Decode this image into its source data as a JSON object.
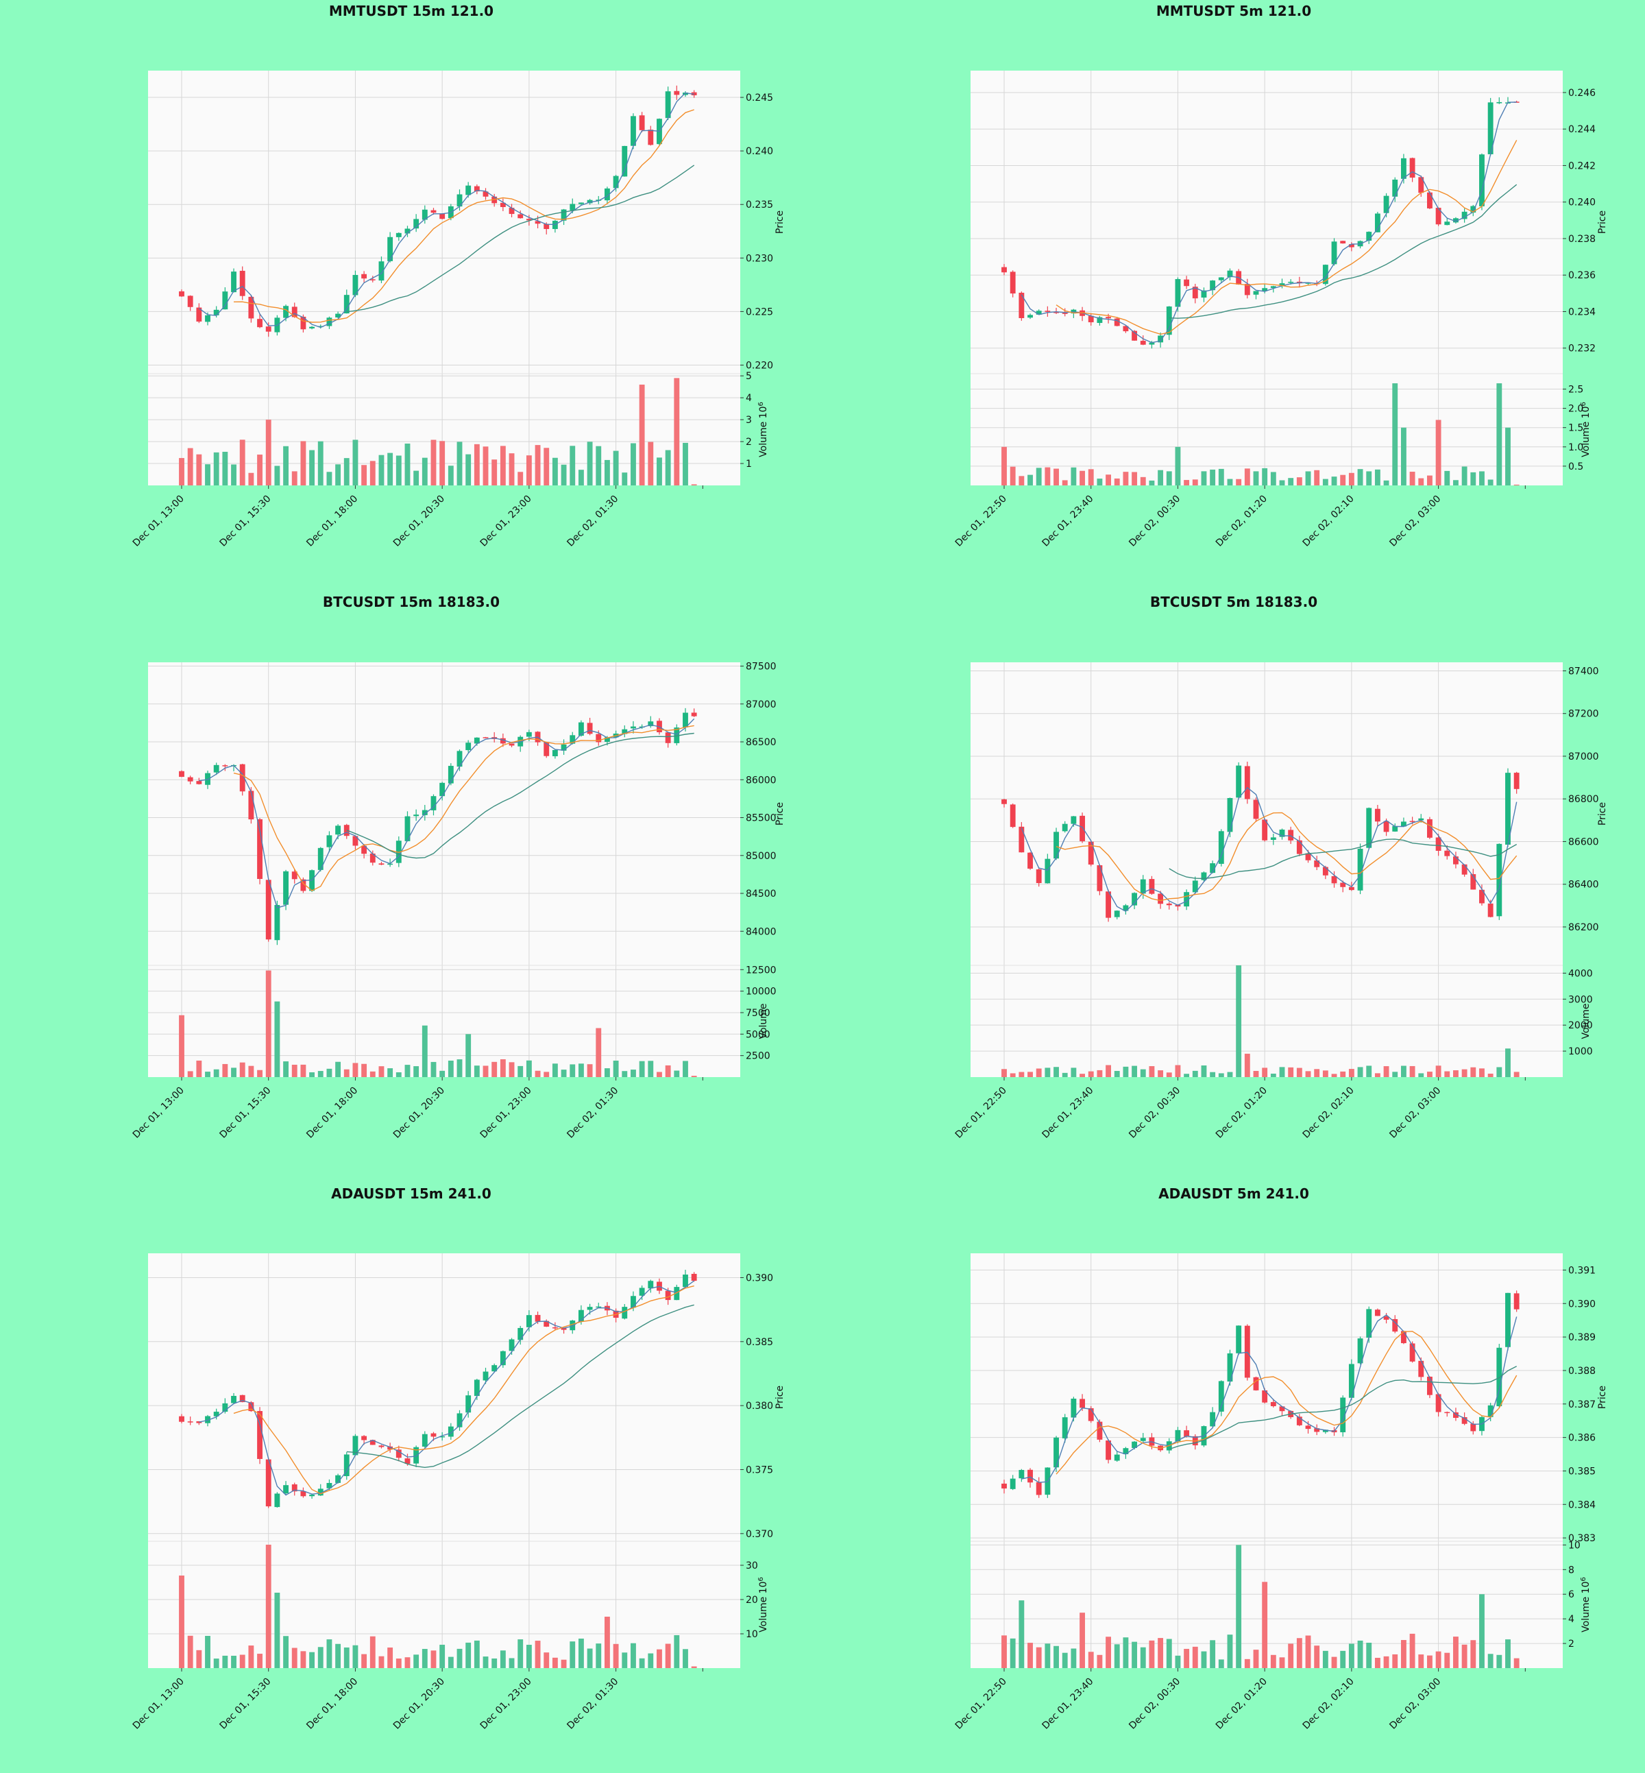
{
  "colors": {
    "background": "#8cfcc0",
    "panel": "#fafafa",
    "grid": "#d6d6d6",
    "up": "#1db682",
    "down": "#f0414f",
    "volume_up": "#4fc296",
    "volume_down": "#f37378",
    "ma_short": "#4f7fb4",
    "ma_mid": "#f28e2c",
    "ma_long": "#3d8f80"
  },
  "chart_data": [
    {
      "type": "candlestick",
      "title": "MMTUSDT 15m 121.0",
      "ylabel": "Price",
      "volume_label": "Volume  10",
      "volume_exponent": "6",
      "xticks": [
        "Dec 01, 13:00",
        "Dec 01, 15:30",
        "Dec 01, 18:00",
        "Dec 01, 20:30",
        "Dec 01, 23:00",
        "Dec 02, 01:30"
      ],
      "xtick_indices": [
        0,
        10,
        20,
        30,
        40,
        50
      ],
      "price_ylim": [
        0.2192,
        0.2475
      ],
      "price_ticks": [
        0.22,
        0.225,
        0.23,
        0.235,
        0.24,
        0.245
      ],
      "price_tick_labels": [
        "0.220",
        "0.225",
        "0.230",
        "0.235",
        "0.240",
        "0.245"
      ],
      "volume_ylim": [
        0,
        5.1
      ],
      "volume_ticks": [
        1,
        2,
        3,
        4,
        5
      ],
      "volume_tick_labels": [
        "1",
        "2",
        "3",
        "4",
        "5"
      ],
      "anchors": [
        [
          0,
          0.2265
        ],
        [
          2,
          0.2242
        ],
        [
          4,
          0.2252
        ],
        [
          6,
          0.2288
        ],
        [
          8,
          0.2242
        ],
        [
          10,
          0.2232
        ],
        [
          12,
          0.2255
        ],
        [
          14,
          0.2235
        ],
        [
          16,
          0.2238
        ],
        [
          18,
          0.2249
        ],
        [
          20,
          0.2285
        ],
        [
          22,
          0.2278
        ],
        [
          24,
          0.2318
        ],
        [
          26,
          0.2328
        ],
        [
          28,
          0.2345
        ],
        [
          30,
          0.2338
        ],
        [
          33,
          0.2368
        ],
        [
          36,
          0.2352
        ],
        [
          39,
          0.2337
        ],
        [
          42,
          0.2328
        ],
        [
          45,
          0.2352
        ],
        [
          48,
          0.2355
        ],
        [
          50,
          0.2375
        ],
        [
          52,
          0.2432
        ],
        [
          54,
          0.2405
        ],
        [
          56,
          0.2455
        ],
        [
          59,
          0.2452
        ]
      ],
      "n": 60,
      "seed": 11,
      "volume_base": 1.5,
      "volume_spikes": [
        [
          10,
          3.0
        ],
        [
          53,
          4.6
        ],
        [
          57,
          4.9
        ]
      ],
      "last_volume": 0.05,
      "ma_windows": [
        3,
        7,
        20
      ]
    },
    {
      "type": "candlestick",
      "title": "MMTUSDT 5m 121.0",
      "ylabel": "Price",
      "volume_label": "Volume  10",
      "volume_exponent": "6",
      "xticks": [
        "Dec 01, 22:50",
        "Dec 01, 23:40",
        "Dec 02, 00:30",
        "Dec 02, 01:20",
        "Dec 02, 02:10",
        "Dec 02, 03:00"
      ],
      "xtick_indices": [
        0,
        10,
        20,
        30,
        40,
        50
      ],
      "price_ylim": [
        0.2306,
        0.2472
      ],
      "price_ticks": [
        0.232,
        0.234,
        0.236,
        0.238,
        0.24,
        0.242,
        0.244,
        0.246
      ],
      "price_tick_labels": [
        "0.232",
        "0.234",
        "0.236",
        "0.238",
        "0.240",
        "0.242",
        "0.244",
        "0.246"
      ],
      "volume_ylim": [
        0,
        2.9
      ],
      "volume_ticks": [
        0.5,
        1.0,
        1.5,
        2.0,
        2.5
      ],
      "volume_tick_labels": [
        "0.5",
        "1.0",
        "1.5",
        "2.0",
        "2.5"
      ],
      "anchors": [
        [
          0,
          0.2362
        ],
        [
          2,
          0.2337
        ],
        [
          4,
          0.2341
        ],
        [
          6,
          0.2339
        ],
        [
          8,
          0.2341
        ],
        [
          10,
          0.2335
        ],
        [
          12,
          0.2337
        ],
        [
          14,
          0.2329
        ],
        [
          16,
          0.2321
        ],
        [
          18,
          0.2327
        ],
        [
          20,
          0.2358
        ],
        [
          22,
          0.2348
        ],
        [
          24,
          0.2357
        ],
        [
          26,
          0.2362
        ],
        [
          28,
          0.2349
        ],
        [
          30,
          0.2353
        ],
        [
          33,
          0.2356
        ],
        [
          36,
          0.2355
        ],
        [
          38,
          0.2378
        ],
        [
          40,
          0.2375
        ],
        [
          42,
          0.2383
        ],
        [
          44,
          0.2403
        ],
        [
          46,
          0.2423
        ],
        [
          48,
          0.2405
        ],
        [
          50,
          0.2388
        ],
        [
          52,
          0.2392
        ],
        [
          54,
          0.2398
        ],
        [
          56,
          0.2455
        ],
        [
          59,
          0.2455
        ]
      ],
      "n": 60,
      "seed": 23,
      "volume_base": 0.35,
      "volume_spikes": [
        [
          0,
          1.0
        ],
        [
          20,
          1.0
        ],
        [
          45,
          2.65
        ],
        [
          46,
          1.5
        ],
        [
          50,
          1.7
        ],
        [
          57,
          2.65
        ],
        [
          58,
          1.5
        ]
      ],
      "last_volume": 0.02,
      "ma_windows": [
        3,
        7,
        20
      ]
    },
    {
      "type": "candlestick",
      "title": "BTCUSDT 15m 18183.0",
      "ylabel": "Price",
      "volume_label": "Volume",
      "volume_exponent": "",
      "xticks": [
        "Dec 01, 13:00",
        "Dec 01, 15:30",
        "Dec 01, 18:00",
        "Dec 01, 20:30",
        "Dec 01, 23:00",
        "Dec 02, 01:30"
      ],
      "xtick_indices": [
        0,
        10,
        20,
        30,
        40,
        50
      ],
      "price_ylim": [
        83550,
        87550
      ],
      "price_ticks": [
        84000,
        84500,
        85000,
        85500,
        86000,
        86500,
        87000,
        87500
      ],
      "price_tick_labels": [
        "84000",
        "84500",
        "85000",
        "85500",
        "86000",
        "86500",
        "87000",
        "87500"
      ],
      "volume_ylim": [
        0,
        13000
      ],
      "volume_ticks": [
        2500,
        5000,
        7500,
        10000,
        12500
      ],
      "volume_tick_labels": [
        "2500",
        "5000",
        "7500",
        "10000",
        "12500"
      ],
      "anchors": [
        [
          0,
          86050
        ],
        [
          2,
          85950
        ],
        [
          4,
          86200
        ],
        [
          6,
          86200
        ],
        [
          8,
          85500
        ],
        [
          10,
          83900
        ],
        [
          12,
          84800
        ],
        [
          14,
          84550
        ],
        [
          16,
          85100
        ],
        [
          18,
          85400
        ],
        [
          20,
          85150
        ],
        [
          22,
          84900
        ],
        [
          24,
          84900
        ],
        [
          26,
          85500
        ],
        [
          28,
          85600
        ],
        [
          30,
          85950
        ],
        [
          32,
          86400
        ],
        [
          34,
          86550
        ],
        [
          36,
          86550
        ],
        [
          38,
          86450
        ],
        [
          40,
          86650
        ],
        [
          42,
          86300
        ],
        [
          44,
          86450
        ],
        [
          46,
          86750
        ],
        [
          48,
          86500
        ],
        [
          50,
          86600
        ],
        [
          52,
          86700
        ],
        [
          54,
          86750
        ],
        [
          56,
          86500
        ],
        [
          58,
          86900
        ],
        [
          59,
          86850
        ]
      ],
      "n": 60,
      "seed": 37,
      "volume_base": 1500,
      "volume_spikes": [
        [
          0,
          7200
        ],
        [
          10,
          12400
        ],
        [
          11,
          8800
        ],
        [
          28,
          6000
        ],
        [
          33,
          5000
        ],
        [
          48,
          5700
        ]
      ],
      "last_volume": 150,
      "ma_windows": [
        3,
        7,
        20
      ]
    },
    {
      "type": "candlestick",
      "title": "BTCUSDT 5m 18183.0",
      "ylabel": "Price",
      "volume_label": "Volume",
      "volume_exponent": "",
      "xticks": [
        "Dec 01, 22:50",
        "Dec 01, 23:40",
        "Dec 02, 00:30",
        "Dec 02, 01:20",
        "Dec 02, 02:10",
        "Dec 02, 03:00"
      ],
      "xtick_indices": [
        0,
        10,
        20,
        30,
        40,
        50
      ],
      "price_ylim": [
        86020,
        87440
      ],
      "price_ticks": [
        86200,
        86400,
        86600,
        86800,
        87000,
        87200,
        87400
      ],
      "price_tick_labels": [
        "86200",
        "86400",
        "86600",
        "86800",
        "87000",
        "87200",
        "87400"
      ],
      "volume_ylim": [
        0,
        4300
      ],
      "volume_ticks": [
        1000,
        2000,
        3000,
        4000
      ],
      "volume_tick_labels": [
        "1000",
        "2000",
        "3000",
        "4000"
      ],
      "anchors": [
        [
          0,
          86780
        ],
        [
          2,
          86550
        ],
        [
          4,
          86400
        ],
        [
          6,
          86650
        ],
        [
          8,
          86720
        ],
        [
          10,
          86500
        ],
        [
          12,
          86250
        ],
        [
          14,
          86300
        ],
        [
          16,
          86420
        ],
        [
          18,
          86300
        ],
        [
          20,
          86300
        ],
        [
          22,
          86420
        ],
        [
          24,
          86500
        ],
        [
          27,
          86950
        ],
        [
          28,
          86800
        ],
        [
          30,
          86600
        ],
        [
          32,
          86650
        ],
        [
          34,
          86550
        ],
        [
          36,
          86480
        ],
        [
          38,
          86400
        ],
        [
          40,
          86380
        ],
        [
          42,
          86750
        ],
        [
          44,
          86650
        ],
        [
          46,
          86700
        ],
        [
          48,
          86700
        ],
        [
          50,
          86550
        ],
        [
          52,
          86500
        ],
        [
          54,
          86380
        ],
        [
          56,
          86250
        ],
        [
          58,
          86920
        ],
        [
          59,
          86840
        ]
      ],
      "n": 60,
      "seed": 53,
      "volume_base": 330,
      "volume_spikes": [
        [
          27,
          4300
        ],
        [
          28,
          900
        ],
        [
          58,
          1100
        ]
      ],
      "last_volume": 200,
      "ma_windows": [
        3,
        7,
        20
      ]
    },
    {
      "type": "candlestick",
      "title": "ADAUSDT 15m 241.0",
      "ylabel": "Price",
      "volume_label": "Volume  10",
      "volume_exponent": "6",
      "xticks": [
        "Dec 01, 13:00",
        "Dec 01, 15:30",
        "Dec 01, 18:00",
        "Dec 01, 20:30",
        "Dec 01, 23:00",
        "Dec 02, 01:30"
      ],
      "xtick_indices": [
        0,
        10,
        20,
        30,
        40,
        50
      ],
      "price_ylim": [
        0.3694,
        0.3919
      ],
      "price_ticks": [
        0.37,
        0.375,
        0.38,
        0.385,
        0.39
      ],
      "price_tick_labels": [
        "0.370",
        "0.375",
        "0.380",
        "0.385",
        "0.390"
      ],
      "volume_ylim": [
        0,
        37
      ],
      "volume_ticks": [
        10,
        20,
        30
      ],
      "volume_tick_labels": [
        "10",
        "20",
        "30"
      ],
      "anchors": [
        [
          0,
          0.3788
        ],
        [
          2,
          0.3786
        ],
        [
          4,
          0.3795
        ],
        [
          6,
          0.3808
        ],
        [
          8,
          0.3795
        ],
        [
          10,
          0.3722
        ],
        [
          12,
          0.3738
        ],
        [
          14,
          0.3728
        ],
        [
          16,
          0.3735
        ],
        [
          18,
          0.3746
        ],
        [
          20,
          0.3775
        ],
        [
          22,
          0.377
        ],
        [
          24,
          0.3765
        ],
        [
          26,
          0.3755
        ],
        [
          28,
          0.3778
        ],
        [
          30,
          0.3775
        ],
        [
          32,
          0.3795
        ],
        [
          34,
          0.382
        ],
        [
          36,
          0.3832
        ],
        [
          38,
          0.3852
        ],
        [
          40,
          0.387
        ],
        [
          42,
          0.3862
        ],
        [
          44,
          0.3858
        ],
        [
          46,
          0.3875
        ],
        [
          48,
          0.3878
        ],
        [
          50,
          0.387
        ],
        [
          52,
          0.3885
        ],
        [
          54,
          0.3898
        ],
        [
          56,
          0.3882
        ],
        [
          58,
          0.3902
        ],
        [
          59,
          0.3898
        ]
      ],
      "n": 60,
      "seed": 71,
      "volume_base": 7,
      "volume_spikes": [
        [
          0,
          27
        ],
        [
          10,
          36
        ],
        [
          11,
          22
        ],
        [
          49,
          15
        ]
      ],
      "last_volume": 0.5,
      "ma_windows": [
        3,
        7,
        20
      ]
    },
    {
      "type": "candlestick",
      "title": "ADAUSDT 5m 241.0",
      "ylabel": "Price",
      "volume_label": "Volume  10",
      "volume_exponent": "6",
      "xticks": [
        "Dec 01, 22:50",
        "Dec 01, 23:40",
        "Dec 02, 00:30",
        "Dec 02, 01:20",
        "Dec 02, 02:10",
        "Dec 02, 03:00"
      ],
      "xtick_indices": [
        0,
        10,
        20,
        30,
        40,
        50
      ],
      "price_ylim": [
        0.3829,
        0.3915
      ],
      "price_ticks": [
        0.383,
        0.384,
        0.385,
        0.386,
        0.387,
        0.388,
        0.389,
        0.39,
        0.391
      ],
      "price_tick_labels": [
        "0.383",
        "0.384",
        "0.385",
        "0.386",
        "0.387",
        "0.388",
        "0.389",
        "0.390",
        "0.391"
      ],
      "volume_ylim": [
        0,
        10.3
      ],
      "volume_ticks": [
        2,
        4,
        6,
        8,
        10
      ],
      "volume_tick_labels": [
        "2",
        "4",
        "6",
        "8",
        "10"
      ],
      "anchors": [
        [
          0,
          0.3845
        ],
        [
          2,
          0.385
        ],
        [
          4,
          0.3843
        ],
        [
          6,
          0.386
        ],
        [
          8,
          0.3872
        ],
        [
          10,
          0.3865
        ],
        [
          12,
          0.3853
        ],
        [
          14,
          0.3857
        ],
        [
          16,
          0.386
        ],
        [
          18,
          0.3856
        ],
        [
          20,
          0.3862
        ],
        [
          22,
          0.3858
        ],
        [
          24,
          0.3868
        ],
        [
          27,
          0.3893
        ],
        [
          28,
          0.3878
        ],
        [
          30,
          0.387
        ],
        [
          32,
          0.3868
        ],
        [
          34,
          0.3864
        ],
        [
          36,
          0.3862
        ],
        [
          38,
          0.3862
        ],
        [
          40,
          0.3882
        ],
        [
          42,
          0.3898
        ],
        [
          44,
          0.3895
        ],
        [
          46,
          0.3888
        ],
        [
          48,
          0.3878
        ],
        [
          50,
          0.3868
        ],
        [
          52,
          0.3866
        ],
        [
          54,
          0.3862
        ],
        [
          56,
          0.387
        ],
        [
          58,
          0.3903
        ],
        [
          59,
          0.3898
        ]
      ],
      "n": 60,
      "seed": 89,
      "volume_base": 2,
      "volume_spikes": [
        [
          2,
          5.5
        ],
        [
          9,
          4.5
        ],
        [
          27,
          10
        ],
        [
          30,
          7
        ],
        [
          55,
          6
        ]
      ],
      "last_volume": 0.8,
      "ma_windows": [
        3,
        7,
        20
      ]
    }
  ]
}
